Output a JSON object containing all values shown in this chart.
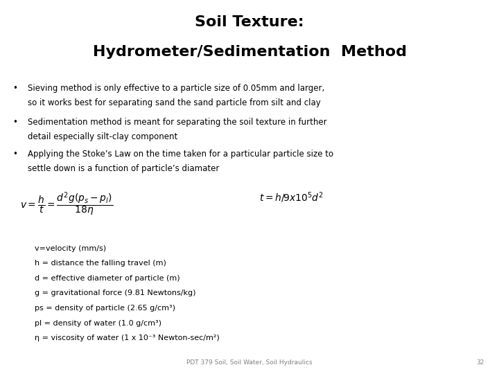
{
  "title_line1": "Soil Texture:",
  "title_line2": "Hydrometer/Sedimentation  Method",
  "bullet1_line1": "Sieving method is only effective to a particle size of 0.05mm and larger,",
  "bullet1_line2": "so it works best for separating sand the sand particle from silt and clay",
  "bullet2_line1": "Sedimentation method is meant for separating the soil texture in further",
  "bullet2_line2": "detail especially silt-clay component",
  "bullet3_line1": "Applying the Stoke’s Law on the time taken for a particular particle size to",
  "bullet3_line2": "settle down is a function of particle’s diamater",
  "var1": "v=velocity (mm/s)",
  "var2": "h = distance the falling travel (m)",
  "var3": "d = effective diameter of particle (m)",
  "var4": "g = gravitational force (9.81 Newtons/kg)",
  "var5": "ps = density of particle (2.65 g/cm³)",
  "var6": "pl = density of water (1.0 g/cm³)",
  "var7": "η = viscosity of water (1 x 10⁻³ Newton-sec/m²)",
  "footer": "PDT 379 Soil, Soil Water, Soil Hydraulics",
  "page_num": "32",
  "bg_color": "#ffffff",
  "text_color": "#000000",
  "title_fontsize": 16,
  "bullet_fontsize": 8.5,
  "eq_fontsize": 10,
  "var_fontsize": 8.0,
  "footer_fontsize": 6.5
}
